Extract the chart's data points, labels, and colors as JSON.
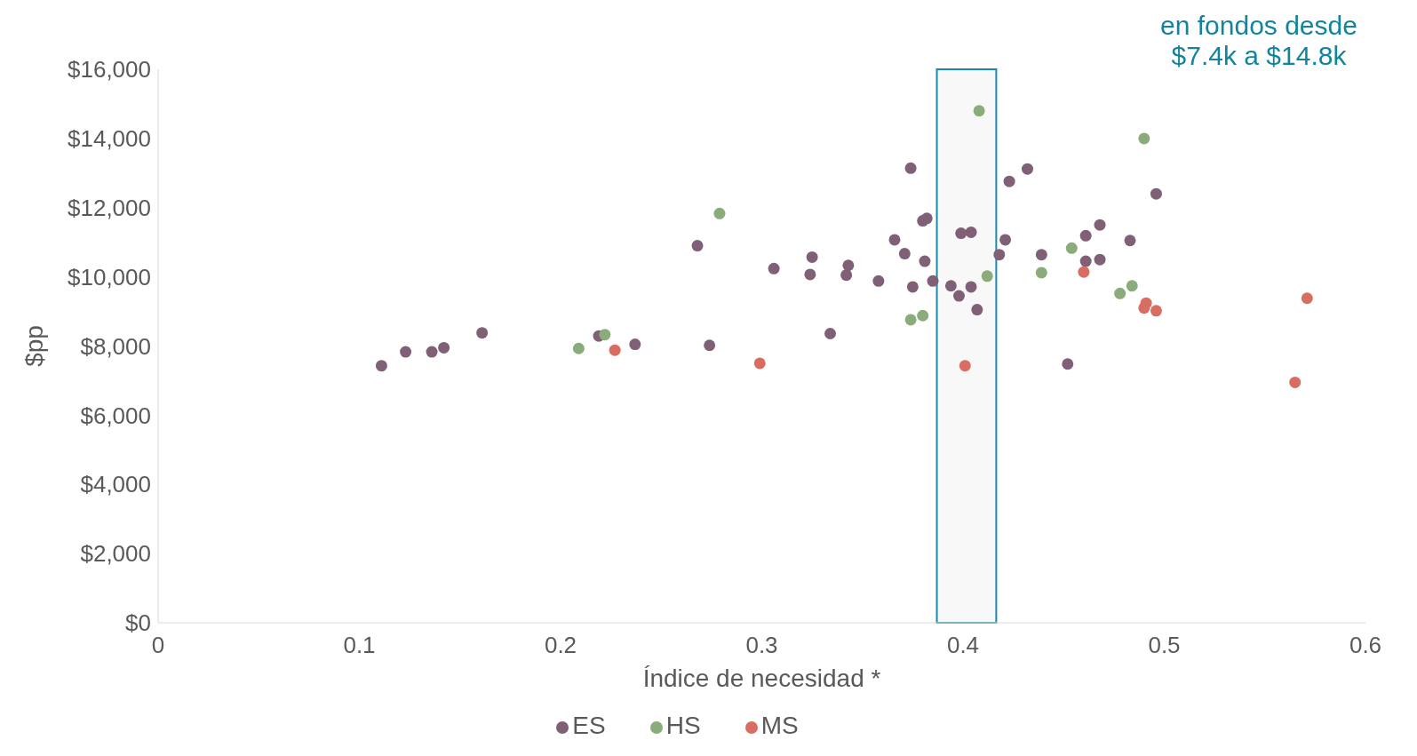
{
  "chart_data": {
    "type": "scatter",
    "xlabel": "Índice de necesidad *",
    "ylabel": "$pp",
    "annotations": [
      "en fondos desde $7.4k a $14.8k"
    ],
    "xlim": [
      0,
      0.6
    ],
    "xticks": [
      0,
      0.1,
      0.2,
      0.3,
      0.4,
      0.5,
      0.6
    ],
    "ylim": [
      0,
      16000
    ],
    "yticks": [
      {
        "value": 0,
        "label": "$0"
      },
      {
        "value": 2000,
        "label": "$2,000"
      },
      {
        "value": 4000,
        "label": "$4,000"
      },
      {
        "value": 6000,
        "label": "$6,000"
      },
      {
        "value": 8000,
        "label": "$8,000"
      },
      {
        "value": 10000,
        "label": "$10,000"
      },
      {
        "value": 12000,
        "label": "$12,000"
      },
      {
        "value": 14000,
        "label": "$14,000"
      },
      {
        "value": 16000,
        "label": "$16,000"
      }
    ],
    "grid": false,
    "legend": "bottom",
    "marker": "circle",
    "bands": [
      {
        "axis": "x",
        "from": 0.387,
        "to": 0.4165,
        "color": "#f8f8f8"
      }
    ],
    "series": [
      {
        "name": "ES",
        "color": "#7f6077",
        "x": [
          0.111,
          0.123,
          0.136,
          0.142,
          0.161,
          0.219,
          0.237,
          0.268,
          0.274,
          0.306,
          0.324,
          0.325,
          0.334,
          0.342,
          0.343,
          0.358,
          0.366,
          0.371,
          0.374,
          0.375,
          0.38,
          0.382,
          0.381,
          0.385,
          0.394,
          0.398,
          0.399,
          0.404,
          0.404,
          0.407,
          0.418,
          0.421,
          0.423,
          0.432,
          0.439,
          0.452,
          0.461,
          0.461,
          0.468,
          0.468,
          0.483,
          0.496
        ],
        "values": [
          7430,
          7830,
          7830,
          7950,
          8380,
          8290,
          8050,
          10900,
          8020,
          10240,
          10070,
          10570,
          8360,
          10050,
          10330,
          9880,
          11070,
          10670,
          13140,
          9710,
          11620,
          11690,
          10450,
          9880,
          9740,
          9450,
          11260,
          11290,
          9710,
          9050,
          10640,
          11070,
          12760,
          13120,
          10640,
          7480,
          11190,
          10450,
          11500,
          10500,
          11050,
          12400
        ]
      },
      {
        "name": "MS",
        "color": "#d86e62",
        "x": [
          0.227,
          0.299,
          0.401,
          0.46,
          0.49,
          0.491,
          0.496,
          0.565,
          0.571
        ],
        "values": [
          7880,
          7500,
          7430,
          10140,
          9100,
          9240,
          9020,
          6950,
          9380
        ]
      },
      {
        "name": "HS",
        "color": "#8aab7a",
        "x": [
          0.209,
          0.222,
          0.279,
          0.374,
          0.38,
          0.408,
          0.412,
          0.439,
          0.454,
          0.478,
          0.484,
          0.49
        ],
        "values": [
          7930,
          8330,
          11830,
          8760,
          8880,
          14800,
          10020,
          10120,
          10830,
          9520,
          9740,
          14000
        ]
      }
    ]
  }
}
